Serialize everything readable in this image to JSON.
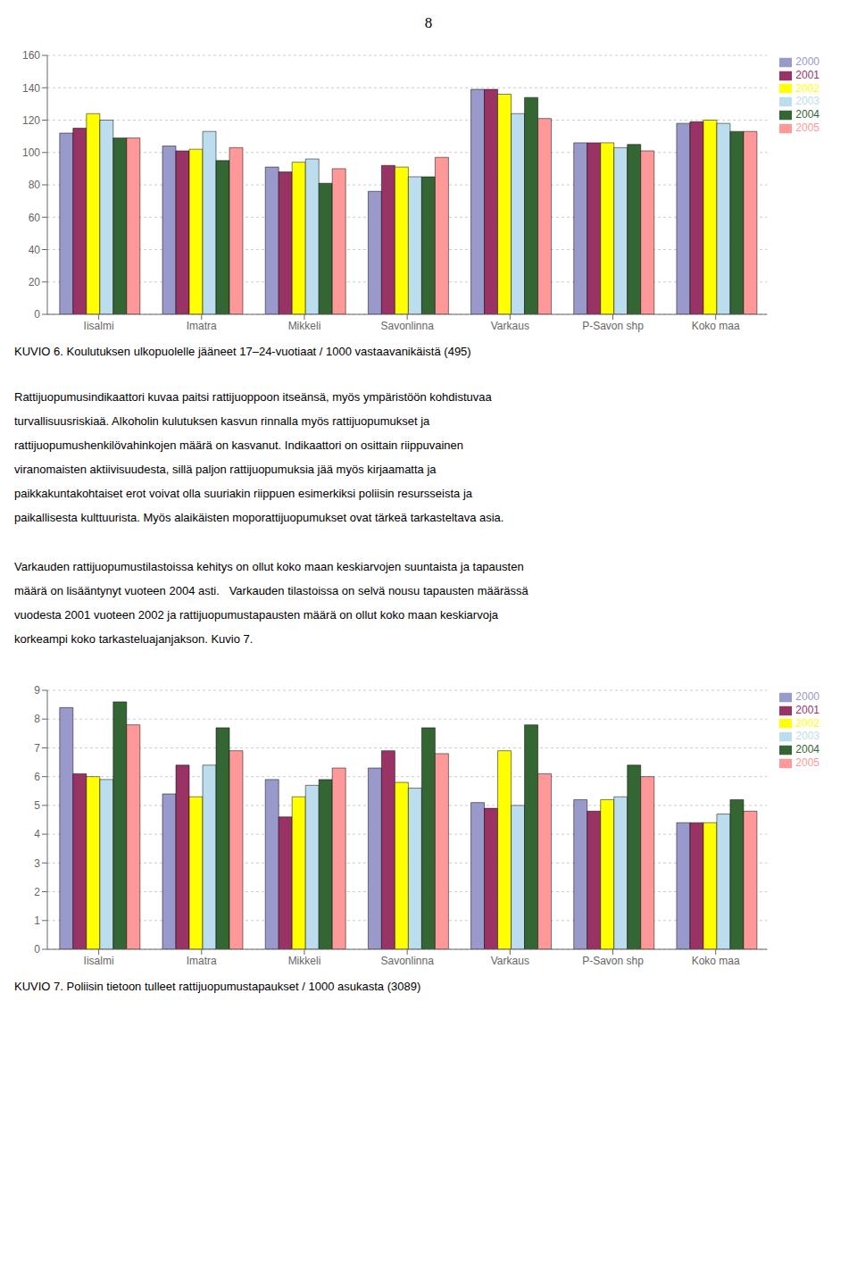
{
  "page_number": "8",
  "text": [
    [
      "Rattijuopumusindikaattori kuvaa paitsi rattijuoppoon itseänsä, myös ympäristöön kohdistuvaa",
      "turvallisuusriskiaä. Alkoholin kulutuksen kasvun rinnalla myös rattijuopumukset ja",
      "rattijuopumushenkilövahinkojen määrä on kasvanut. Indikaattori on osittain riippuvainen",
      "viranomaisten aktiivisuudesta, sillä paljon rattijuopumuksia jää myös kirjaamatta ja",
      "paikkakuntakohtaiset erot voivat olla suuriakin riippuen esimerkiksi poliisin resursseista ja",
      "paikallisesta kulttuurista. Myös alaikäisten moporattijuopumukset ovat tärkeä tarkasteltava asia."
    ],
    [
      "Varkauden rattijuopumustilastoissa kehitys on ollut koko maan keskiarvojen suuntaista ja tapausten",
      "määrä on lisääntynyt vuoteen 2004 asti.   Varkauden tilastoissa on selvä nousu tapausten määrässä",
      "vuodesta 2001 vuoteen 2002 ja rattijuopumustapausten määrä on ollut koko maan keskiarvoja",
      "korkeampi koko tarkasteluajanjakson. Kuvio 7."
    ]
  ],
  "chart_data": [
    {
      "type": "bar",
      "title": "KUVIO 6. Koulutuksen ulkopuolelle jääneet 17–24-vuotiaat / 1000 vastaavanikäistä (495)",
      "categories": [
        "Iisalmi",
        "Imatra",
        "Mikkeli",
        "Savonlinna",
        "Varkaus",
        "P-Savon shp",
        "Koko maa"
      ],
      "series": [
        {
          "name": "2000",
          "color": "#9999CC",
          "values": [
            112,
            104,
            91,
            76,
            139,
            106,
            118
          ]
        },
        {
          "name": "2001",
          "color": "#993366",
          "values": [
            115,
            101,
            88,
            92,
            139,
            106,
            119
          ]
        },
        {
          "name": "2002",
          "color": "#FFFF00",
          "values": [
            124,
            102,
            94,
            91,
            136,
            106,
            120
          ]
        },
        {
          "name": "2003",
          "color": "#BBDDEE",
          "values": [
            120,
            113,
            96,
            85,
            124,
            103,
            118
          ]
        },
        {
          "name": "2004",
          "color": "#336633",
          "values": [
            109,
            95,
            81,
            85,
            134,
            105,
            113
          ]
        },
        {
          "name": "2005",
          "color": "#FF9999",
          "values": [
            109,
            103,
            90,
            97,
            121,
            101,
            113
          ]
        }
      ],
      "ylim": [
        0,
        160
      ],
      "yticks": [
        0,
        20,
        40,
        60,
        80,
        100,
        120,
        140,
        160
      ],
      "grid": true,
      "legend": "right"
    },
    {
      "type": "bar",
      "title": "KUVIO 7. Poliisin tietoon tulleet rattijuopumustapaukset / 1000 asukasta (3089)",
      "categories": [
        "Iisalmi",
        "Imatra",
        "Mikkeli",
        "Savonlinna",
        "Varkaus",
        "P-Savon shp",
        "Koko maa"
      ],
      "series": [
        {
          "name": "2000",
          "color": "#9999CC",
          "values": [
            8.4,
            5.4,
            5.9,
            6.3,
            5.1,
            5.2,
            4.4
          ]
        },
        {
          "name": "2001",
          "color": "#993366",
          "values": [
            6.1,
            6.4,
            4.6,
            6.9,
            4.9,
            4.8,
            4.4
          ]
        },
        {
          "name": "2002",
          "color": "#FFFF00",
          "values": [
            6.0,
            5.3,
            5.3,
            5.8,
            6.9,
            5.2,
            4.4
          ]
        },
        {
          "name": "2003",
          "color": "#BBDDEE",
          "values": [
            5.9,
            6.4,
            5.7,
            5.6,
            5.0,
            5.3,
            4.7
          ]
        },
        {
          "name": "2004",
          "color": "#336633",
          "values": [
            8.6,
            7.7,
            5.9,
            7.7,
            7.8,
            6.4,
            5.2
          ]
        },
        {
          "name": "2005",
          "color": "#FF9999",
          "values": [
            7.8,
            6.9,
            6.3,
            6.8,
            6.1,
            6.0,
            4.8
          ]
        }
      ],
      "ylim": [
        0,
        9
      ],
      "yticks": [
        0,
        1,
        2,
        3,
        4,
        5,
        6,
        7,
        8,
        9
      ],
      "grid": true,
      "legend": "right"
    }
  ]
}
